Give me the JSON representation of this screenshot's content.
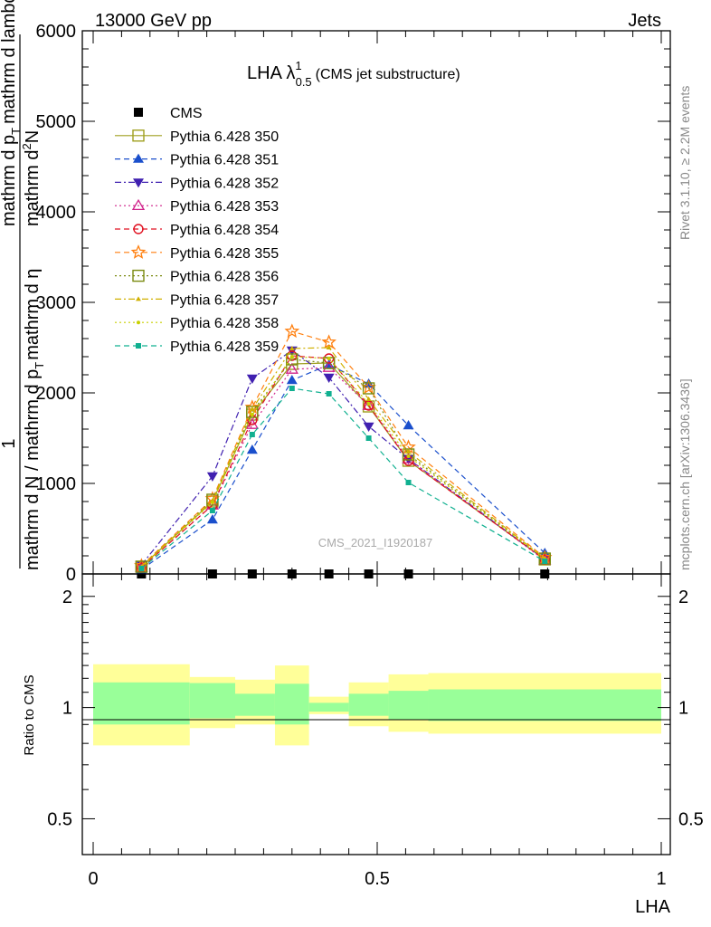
{
  "header": {
    "left": "13000 GeV pp",
    "right": "Jets"
  },
  "side_labels": {
    "rivet": "Rivet 3.1.10, ≥ 2.2M events",
    "mcplots": "mcplots.cern.ch [arXiv:1306.3436]"
  },
  "watermark": "CMS_2021_I1920187",
  "colors": {
    "band_outer": "#ffff99",
    "band_inner": "#99ff99",
    "cms": "#000000"
  },
  "chart_data": [
    {
      "type": "line",
      "title": "LHA λ",
      "title_sup": "1",
      "title_sub": "0.5",
      "title_suffix": "(CMS jet substructure)",
      "ylabel_numerator": "1",
      "ylabel_parts": [
        "mathrm d N / mathrm d p",
        "T",
        "mathrm d η"
      ],
      "ylabel_secondary": [
        "mathrm d",
        "2",
        "N",
        "mathrm d p",
        "T",
        "mathrm d lambda"
      ],
      "xlim": [
        0,
        1
      ],
      "ylim": [
        0,
        6000
      ],
      "y_ticks": [
        "0",
        "1000",
        "2000",
        "3000",
        "4000",
        "5000",
        "6000"
      ],
      "x": [
        0.085,
        0.21,
        0.28,
        0.35,
        0.415,
        0.485,
        0.555,
        0.795
      ],
      "cms_values": [
        0,
        0,
        0,
        0,
        0,
        0,
        0,
        0
      ],
      "series": [
        {
          "name": "CMS",
          "color": "#000000",
          "marker": "square-filled",
          "dash": "none",
          "values": [
            0,
            0,
            0,
            0,
            0,
            0,
            0,
            0
          ]
        },
        {
          "name": "Pythia 6.428 350",
          "color": "#a0a020",
          "marker": "square-open",
          "dash": "solid",
          "values": [
            80,
            800,
            1760,
            2320,
            2330,
            1850,
            1250,
            160
          ]
        },
        {
          "name": "Pythia 6.428 351",
          "color": "#1a4fcc",
          "marker": "triangle-up",
          "dash": "dashed",
          "values": [
            50,
            600,
            1370,
            2140,
            2310,
            2100,
            1640,
            230
          ]
        },
        {
          "name": "Pythia 6.428 352",
          "color": "#4020b0",
          "marker": "triangle-down",
          "dash": "dashdot",
          "values": [
            100,
            1080,
            2160,
            2470,
            2170,
            1630,
            1270,
            160
          ]
        },
        {
          "name": "Pythia 6.428 353",
          "color": "#d0208a",
          "marker": "triangle-open",
          "dash": "dotted",
          "values": [
            70,
            760,
            1650,
            2260,
            2280,
            1860,
            1270,
            150
          ]
        },
        {
          "name": "Pythia 6.428 354",
          "color": "#e01020",
          "marker": "circle-open",
          "dash": "dashed",
          "values": [
            70,
            760,
            1700,
            2410,
            2380,
            1860,
            1250,
            160
          ]
        },
        {
          "name": "Pythia 6.428 355",
          "color": "#ff7f0e",
          "marker": "star-open",
          "dash": "dashed",
          "values": [
            90,
            830,
            1840,
            2680,
            2560,
            2060,
            1400,
            180
          ]
        },
        {
          "name": "Pythia 6.428 356",
          "color": "#7a8a10",
          "marker": "square-open",
          "dash": "dotted",
          "values": [
            80,
            820,
            1790,
            2370,
            2330,
            2050,
            1320,
            170
          ]
        },
        {
          "name": "Pythia 6.428 357",
          "color": "#d0b000",
          "marker": "tri-small",
          "dash": "dashdot",
          "values": [
            80,
            810,
            1820,
            2490,
            2500,
            1930,
            1350,
            170
          ]
        },
        {
          "name": "Pythia 6.428 358",
          "color": "#c8d000",
          "marker": "dot-small",
          "dash": "dotted",
          "values": [
            75,
            790,
            1760,
            2400,
            2380,
            1880,
            1300,
            165
          ]
        },
        {
          "name": "Pythia 6.428 359",
          "color": "#10b090",
          "marker": "square-small",
          "dash": "dashed",
          "values": [
            60,
            700,
            1540,
            2050,
            1990,
            1500,
            1010,
            140
          ]
        }
      ]
    },
    {
      "type": "area",
      "ylabel": "Ratio to CMS",
      "xlabel": "LHA",
      "xlim": [
        0,
        1
      ],
      "ylim": [
        0.4,
        2.3
      ],
      "y_scale": "log",
      "y_ticks": [
        "0.5",
        "1",
        "2"
      ],
      "x_ticks": [
        "0",
        "0.5",
        "1"
      ],
      "bins": [
        {
          "lo": 0.0,
          "hi": 0.17,
          "inner": [
            0.9,
            1.17
          ],
          "outer": [
            0.79,
            1.31
          ]
        },
        {
          "lo": 0.17,
          "hi": 0.25,
          "inner": [
            0.935,
            1.165
          ],
          "outer": [
            0.88,
            1.21
          ]
        },
        {
          "lo": 0.25,
          "hi": 0.32,
          "inner": [
            0.95,
            1.09
          ],
          "outer": [
            0.9,
            1.19
          ]
        },
        {
          "lo": 0.32,
          "hi": 0.38,
          "inner": [
            0.9,
            1.16
          ],
          "outer": [
            0.79,
            1.3
          ]
        },
        {
          "lo": 0.38,
          "hi": 0.45,
          "inner": [
            0.975,
            1.03
          ],
          "outer": [
            0.96,
            1.07
          ]
        },
        {
          "lo": 0.45,
          "hi": 0.52,
          "inner": [
            0.95,
            1.09
          ],
          "outer": [
            0.89,
            1.17
          ]
        },
        {
          "lo": 0.52,
          "hi": 0.59,
          "inner": [
            0.93,
            1.11
          ],
          "outer": [
            0.86,
            1.23
          ]
        },
        {
          "lo": 0.59,
          "hi": 1.0,
          "inner": [
            0.92,
            1.12
          ],
          "outer": [
            0.85,
            1.24
          ]
        }
      ]
    }
  ]
}
